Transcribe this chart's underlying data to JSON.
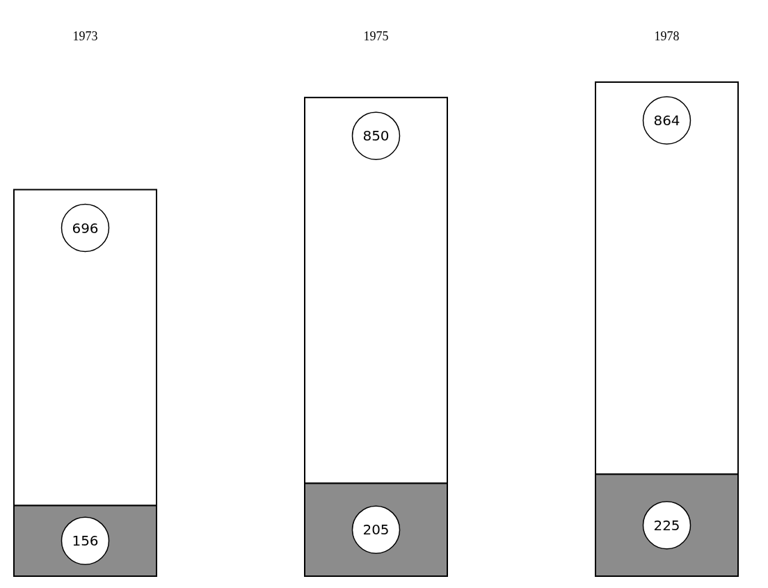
{
  "chart_data": {
    "type": "bar",
    "stacked": true,
    "data_labels": true,
    "categories": [
      "1973",
      "1975",
      "1978"
    ],
    "series": [
      {
        "color": "#8c8c8c",
        "values": [
          156,
          205,
          225
        ]
      },
      {
        "color": "#ffffff",
        "values": [
          696,
          850,
          864
        ]
      }
    ]
  }
}
